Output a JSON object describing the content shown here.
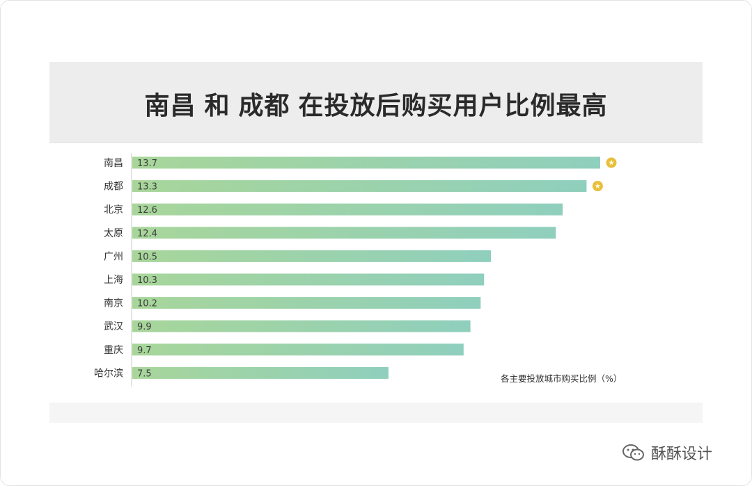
{
  "page": {
    "title_parts": [
      "南昌",
      "和",
      "成都",
      "在投放后购买用户比例最高"
    ],
    "watermark_text": "酥酥设计",
    "watermark_icon": "wechat-icon"
  },
  "chart_data": {
    "type": "bar",
    "orientation": "horizontal",
    "title": "南昌 和 成都 在投放后购买用户比例最高",
    "categories": [
      "南昌",
      "成都",
      "北京",
      "太原",
      "广州",
      "上海",
      "南京",
      "武汉",
      "重庆",
      "哈尔滨"
    ],
    "values": [
      13.7,
      13.3,
      12.6,
      12.4,
      10.5,
      10.3,
      10.2,
      9.9,
      9.7,
      7.5
    ],
    "value_labels": [
      "13.7",
      "13.3",
      "12.6",
      "12.4",
      "10.5",
      "10.3",
      "10.2",
      "9.9",
      "9.7",
      "7.5"
    ],
    "highlighted": [
      "南昌",
      "成都"
    ],
    "highlight_icon": "gold-star-badge-icon",
    "annotation": "各主要投放城市购买比例（%）",
    "xlim": [
      0,
      13.7
    ],
    "grid": false,
    "bar_gradient": [
      "#a8d69a",
      "#8fcfbd"
    ],
    "highlight_color": "#e7bf3a"
  }
}
